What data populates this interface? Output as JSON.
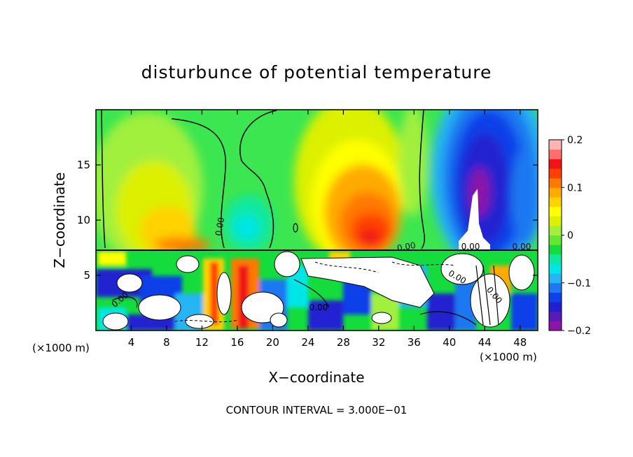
{
  "chart_data": {
    "type": "heatmap",
    "title": "disturbunce of potential temperature",
    "xlabel": "X−coordinate",
    "ylabel": "Z−coordinate",
    "x_unit": "(×1000 m)",
    "y_unit": "(×1000 m)",
    "xlim": [
      0,
      50
    ],
    "ylim": [
      0,
      20
    ],
    "x_ticks": [
      "4",
      "8",
      "12",
      "16",
      "20",
      "24",
      "28",
      "32",
      "36",
      "40",
      "44",
      "48"
    ],
    "y_ticks": [
      "5",
      "10",
      "15"
    ],
    "colorbar": {
      "range": [
        -0.2,
        0.2
      ],
      "tick_labels": [
        "0.2",
        "0.1",
        "0",
        "−0.1",
        "−0.2"
      ],
      "colors": [
        "#8c14a8",
        "#5a1ab8",
        "#2020d0",
        "#1040e8",
        "#1e78f0",
        "#28b4f4",
        "#00e6e6",
        "#10e8a0",
        "#14dc3c",
        "#64e632",
        "#a0f03c",
        "#dcf000",
        "#ffff00",
        "#ffd200",
        "#ffaa00",
        "#ff7800",
        "#ff4000",
        "#f01414",
        "#ff6e6e",
        "#ffb4b4"
      ]
    },
    "layer_boundary_z": 7.3,
    "upper_layer": {
      "x": [
        0,
        4,
        8,
        12,
        16,
        20,
        24,
        28,
        32,
        36,
        40,
        44,
        48,
        50
      ],
      "theta_near_boundary": [
        0.02,
        0.06,
        0.08,
        0.05,
        -0.01,
        0.02,
        0.07,
        0.12,
        0.14,
        0.05,
        -0.05,
        -0.16,
        -0.08,
        -0.04
      ]
    },
    "contour_labels": [
      "0.00",
      "0.00",
      "0.00",
      "0.00",
      "0.00",
      "0.00",
      "0.00",
      "0.00"
    ],
    "annotation": "CONTOUR INTERVAL = 3.000E−01"
  }
}
